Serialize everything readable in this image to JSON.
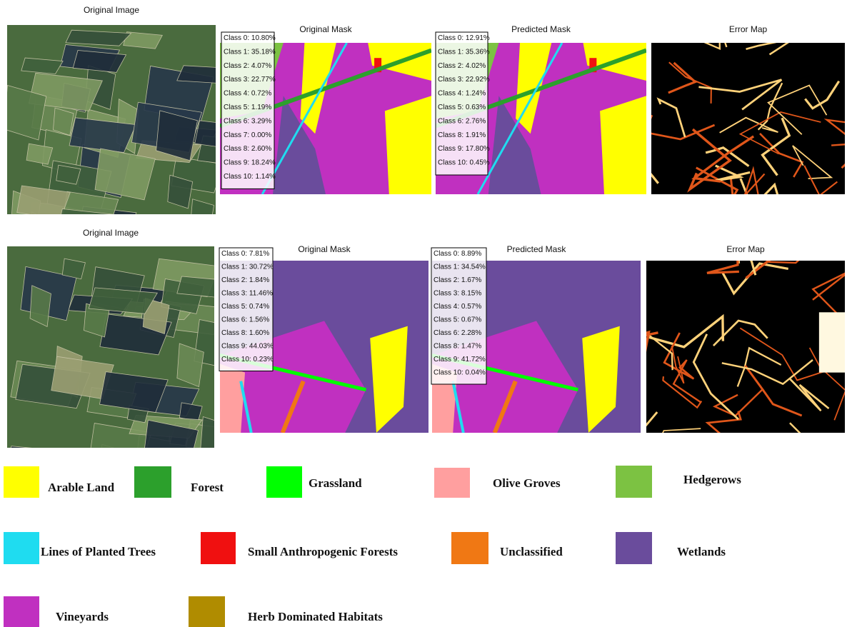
{
  "rows": [
    {
      "panels": [
        {
          "title": "Original Image"
        },
        {
          "title": "Original Mask",
          "stats": [
            "Class 0: 10.80%",
            "Class 1: 35.18%",
            "Class 2: 4.07%",
            "Class 3: 22.77%",
            "Class 4: 0.72%",
            "Class 5: 1.19%",
            "Class 6: 3.29%",
            "Class 7: 0.00%",
            "Class 8: 2.60%",
            "Class 9: 18.24%",
            "Class 10: 1.14%"
          ]
        },
        {
          "title": "Predicted Mask",
          "stats": [
            "Class 0: 12.91%",
            "Class 1: 35.36%",
            "Class 2: 4.02%",
            "Class 3: 22.92%",
            "Class 4: 1.24%",
            "Class 5: 0.63%",
            "Class 6: 2.76%",
            "Class 8: 1.91%",
            "Class 9: 17.80%",
            "Class 10: 0.45%"
          ]
        },
        {
          "title": "Error Map"
        }
      ]
    },
    {
      "panels": [
        {
          "title": "Original Image"
        },
        {
          "title": "Original Mask",
          "stats": [
            "Class 0: 7.81%",
            "Class 1: 30.72%",
            "Class 2: 1.84%",
            "Class 3: 11.46%",
            "Class 5: 0.74%",
            "Class 6: 1.56%",
            "Class 8: 1.60%",
            "Class 9: 44.03%",
            "Class 10: 0.23%"
          ]
        },
        {
          "title": "Predicted Mask",
          "stats": [
            "Class 0: 8.89%",
            "Class 1: 34.54%",
            "Class 2: 1.67%",
            "Class 3: 8.15%",
            "Class 4: 0.57%",
            "Class 5: 0.67%",
            "Class 6: 2.28%",
            "Class 8: 1.47%",
            "Class 9: 41.72%",
            "Class 10: 0.04%"
          ]
        },
        {
          "title": "Error Map"
        }
      ]
    }
  ],
  "legend": [
    {
      "label": "Arable Land",
      "color": "#ffff00"
    },
    {
      "label": "Forest",
      "color": "#2ca02c"
    },
    {
      "label": "Grassland",
      "color": "#00ff00"
    },
    {
      "label": "Olive Groves",
      "color": "#ff9f9f"
    },
    {
      "label": "Hedgerows",
      "color": "#7cc242"
    },
    {
      "label": "Lines of Planted Trees",
      "color": "#1fdcf0"
    },
    {
      "label": "Small Anthropogenic Forests",
      "color": "#f01010"
    },
    {
      "label": "Unclassified",
      "color": "#f07814"
    },
    {
      "label": "Wetlands",
      "color": "#6a4c9c"
    },
    {
      "label": "Vineyards",
      "color": "#c030c0"
    },
    {
      "label": "Herb Dominated Habitats",
      "color": "#b08c00"
    }
  ]
}
